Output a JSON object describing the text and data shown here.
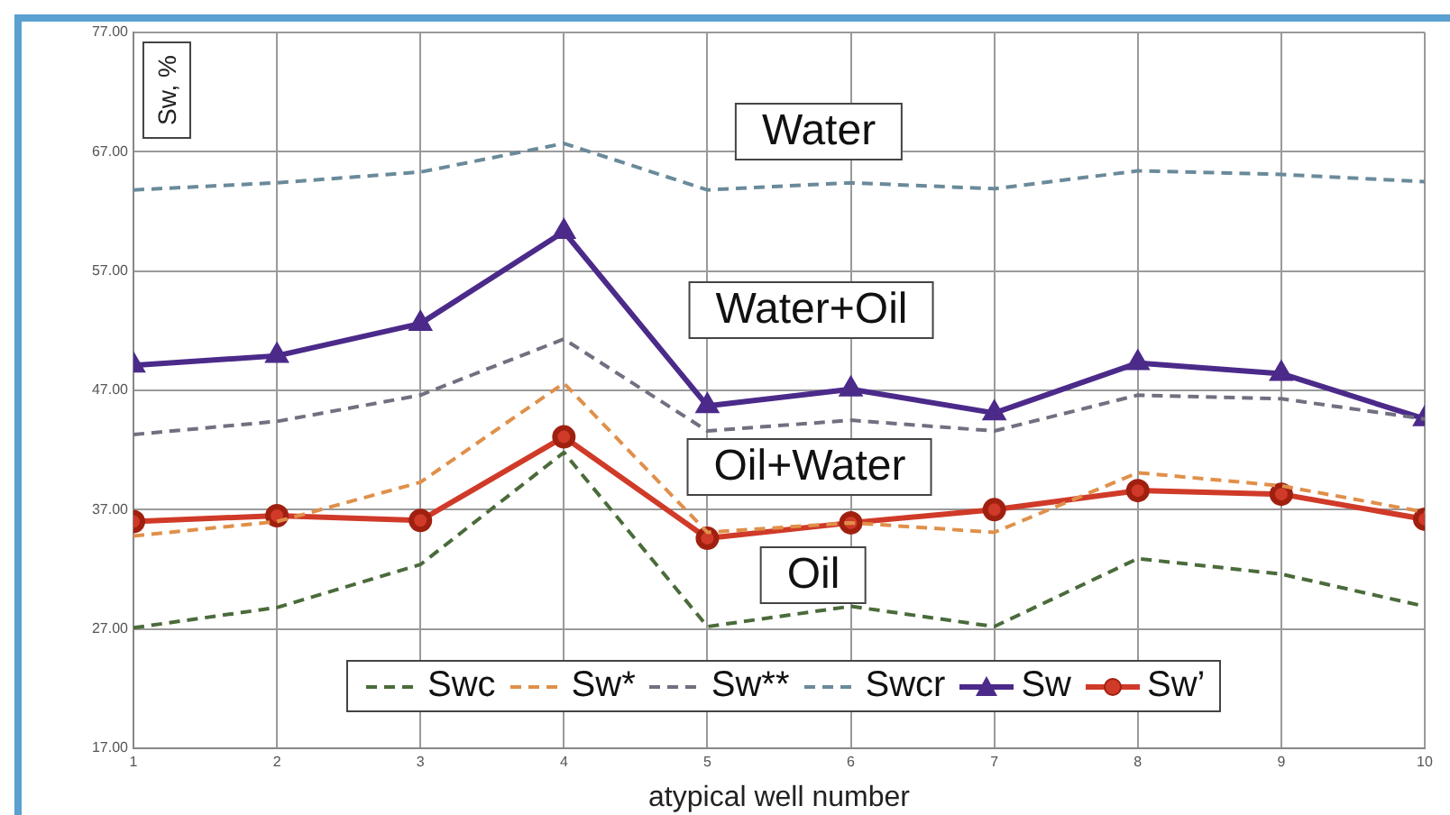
{
  "chart_data": {
    "type": "line",
    "xlabel": "atypical well number",
    "ylabel": "Sw, %",
    "x": [
      1,
      2,
      3,
      4,
      5,
      6,
      7,
      8,
      9,
      10
    ],
    "xlim": [
      1,
      10
    ],
    "xticks": [
      1,
      2,
      3,
      4,
      5,
      6,
      7,
      8,
      9,
      10
    ],
    "ylim": [
      17,
      77
    ],
    "yticks": [
      {
        "value": 17,
        "label": "17.00"
      },
      {
        "value": 27,
        "label": "27.00"
      },
      {
        "value": 37,
        "label": "37.00"
      },
      {
        "value": 47,
        "label": "47.00"
      },
      {
        "value": 57,
        "label": "57.00"
      },
      {
        "value": 67,
        "label": "67.00"
      },
      {
        "value": 77,
        "label": "77.00"
      }
    ],
    "grid": true,
    "legend": "bottom",
    "series": [
      {
        "name": "Swc",
        "color": "#4a6b3a",
        "line_style": "dashed",
        "marker": "none",
        "values": [
          27.1,
          28.8,
          32.4,
          41.8,
          27.2,
          28.9,
          27.2,
          32.9,
          31.6,
          28.9
        ]
      },
      {
        "name": "Sw*",
        "color": "#e0904a",
        "line_style": "dashed",
        "marker": "none",
        "values": [
          34.8,
          36.0,
          39.3,
          47.6,
          35.1,
          35.9,
          35.1,
          40.1,
          39.0,
          36.8
        ]
      },
      {
        "name": "Sw**",
        "color": "#707080",
        "line_style": "dashed",
        "marker": "none",
        "values": [
          43.3,
          44.4,
          46.6,
          51.3,
          43.6,
          44.5,
          43.6,
          46.6,
          46.3,
          44.6
        ]
      },
      {
        "name": "Swcr",
        "color": "#6a8a9a",
        "line_style": "dashed",
        "marker": "none",
        "values": [
          63.8,
          64.4,
          65.3,
          67.7,
          63.8,
          64.4,
          63.9,
          65.4,
          65.1,
          64.5
        ]
      },
      {
        "name": "Sw",
        "color": "#4b2a8a",
        "line_style": "solid",
        "marker": "triangle",
        "values": [
          49.1,
          49.9,
          52.6,
          60.3,
          45.7,
          47.1,
          45.1,
          49.3,
          48.4,
          44.6
        ]
      },
      {
        "name": "Sw’",
        "color": "#d03a28",
        "line_style": "solid",
        "marker": "circle",
        "values": [
          36.0,
          36.5,
          36.1,
          43.1,
          34.6,
          35.9,
          37.0,
          38.6,
          38.3,
          36.2
        ]
      }
    ],
    "annotations": [
      "Water",
      "Water+Oil",
      "Oil+Water",
      "Oil"
    ]
  }
}
